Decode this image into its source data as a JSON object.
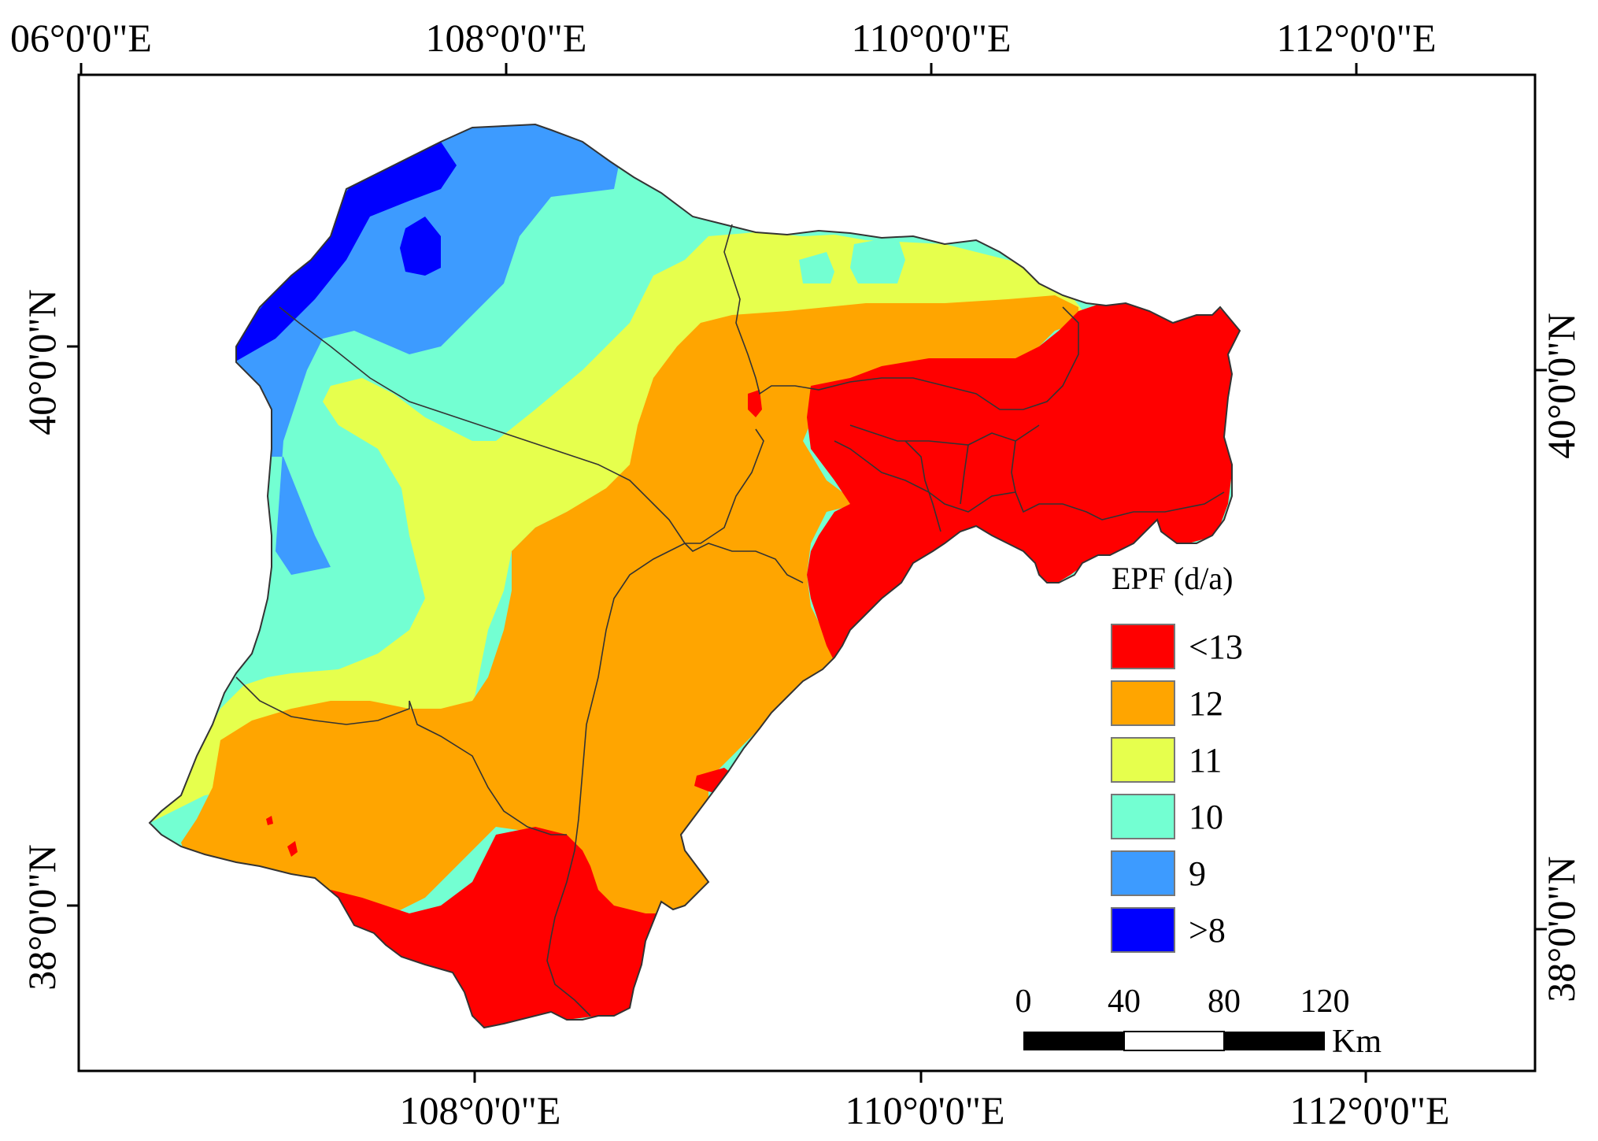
{
  "map": {
    "top_lon_labels": [
      "06°0'0\"E",
      "108°0'0\"E",
      "110°0'0\"E",
      "112°0'0\"E"
    ],
    "bottom_lon_labels": [
      "108°0'0\"E",
      "110°0'0\"E",
      "112°0'0\"E"
    ],
    "left_lat_labels": [
      "40°0'0\"N",
      "38°0'0\"N"
    ],
    "right_lat_labels": [
      "40°0'0\"N",
      "38°0'0\"N"
    ]
  },
  "legend": {
    "title": "EPF (d/a)",
    "items": [
      {
        "label": "<13",
        "color": "#ff0000"
      },
      {
        "label": "12",
        "color": "#ffa500"
      },
      {
        "label": "11",
        "color": "#e6ff4d"
      },
      {
        "label": "10",
        "color": "#73ffd2"
      },
      {
        "label": "9",
        "color": "#3d9bff"
      },
      {
        "label": ">8",
        "color": "#0000ff"
      }
    ]
  },
  "scale_bar": {
    "ticks": [
      "0",
      "40",
      "80",
      "120"
    ],
    "unit": "Km"
  }
}
